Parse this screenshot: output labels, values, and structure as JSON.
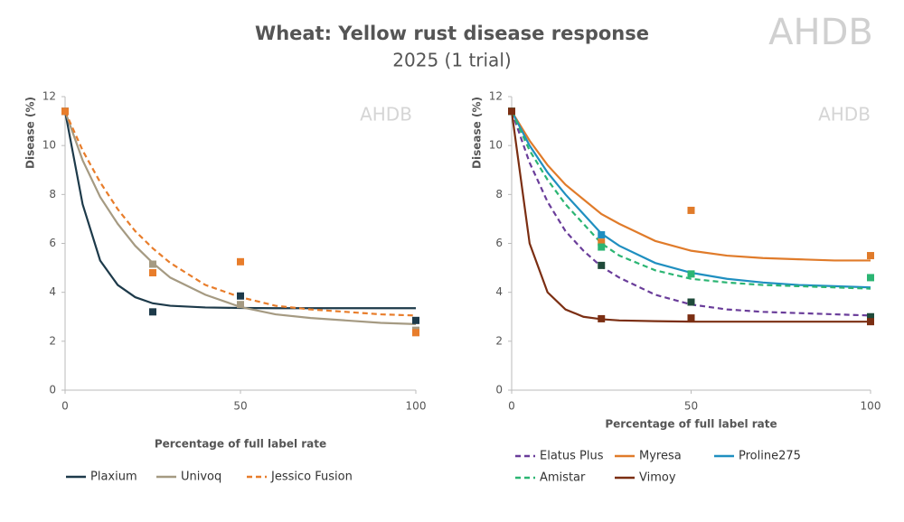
{
  "title": "Wheat: Yellow rust disease response",
  "subtitle": "2025 (1 trial)",
  "logo": "AHDB",
  "chart_data": [
    {
      "type": "line",
      "watermark": "AHDB",
      "xlabel": "Percentage of full label rate",
      "ylabel": "Disease (%)",
      "xlim": [
        0,
        100
      ],
      "ylim": [
        0,
        12
      ],
      "xticks": [
        0,
        50,
        100
      ],
      "yticks": [
        0,
        2,
        4,
        6,
        8,
        10,
        12
      ],
      "x": [
        0,
        5,
        10,
        15,
        20,
        25,
        30,
        40,
        50,
        60,
        70,
        80,
        90,
        100
      ],
      "point_x": [
        0,
        25,
        50,
        100
      ],
      "series": [
        {
          "name": "Plaxium",
          "color": "#1d3a4a",
          "dash": false,
          "point_color": "#1d3a4a",
          "values": [
            11.4,
            7.6,
            5.3,
            4.3,
            3.8,
            3.55,
            3.45,
            3.38,
            3.36,
            3.35,
            3.35,
            3.35,
            3.35,
            3.35
          ],
          "point_values": [
            11.4,
            3.2,
            3.85,
            2.85
          ]
        },
        {
          "name": "Univoq",
          "color": "#a59a82",
          "dash": false,
          "point_color": "#a59a82",
          "values": [
            11.4,
            9.4,
            7.9,
            6.8,
            5.9,
            5.2,
            4.6,
            3.9,
            3.4,
            3.1,
            2.95,
            2.85,
            2.75,
            2.7
          ],
          "point_values": [
            11.4,
            5.15,
            3.5,
            2.45
          ]
        },
        {
          "name": "Jessico Fusion",
          "color": "#e87d2b",
          "dash": true,
          "point_color": "#e87d2b",
          "values": [
            11.4,
            9.8,
            8.5,
            7.4,
            6.5,
            5.8,
            5.2,
            4.3,
            3.8,
            3.45,
            3.3,
            3.2,
            3.1,
            3.05
          ],
          "point_values": [
            11.4,
            4.8,
            5.25,
            2.35
          ]
        }
      ]
    },
    {
      "type": "line",
      "watermark": "AHDB",
      "xlabel": "Percentage of full label rate",
      "ylabel": "Disease (%)",
      "xlim": [
        0,
        100
      ],
      "ylim": [
        0,
        12
      ],
      "xticks": [
        0,
        50,
        100
      ],
      "yticks": [
        0,
        2,
        4,
        6,
        8,
        10,
        12
      ],
      "x": [
        0,
        5,
        10,
        15,
        20,
        25,
        30,
        40,
        50,
        60,
        70,
        80,
        90,
        100
      ],
      "point_x": [
        0,
        25,
        50,
        100
      ],
      "series": [
        {
          "name": "Elatus Plus",
          "color": "#6a3d9a",
          "dash": true,
          "point_color": "#1f4a3a",
          "values": [
            11.4,
            9.3,
            7.7,
            6.5,
            5.7,
            5.05,
            4.6,
            3.9,
            3.5,
            3.3,
            3.2,
            3.15,
            3.1,
            3.05
          ],
          "point_values": [
            11.4,
            5.1,
            3.6,
            3.0
          ]
        },
        {
          "name": "Myresa",
          "color": "#e07b2a",
          "dash": false,
          "point_color": "#e07b2a",
          "values": [
            11.4,
            10.2,
            9.2,
            8.4,
            7.8,
            7.2,
            6.8,
            6.1,
            5.7,
            5.5,
            5.4,
            5.35,
            5.3,
            5.3
          ],
          "point_values": [
            11.4,
            6.05,
            7.35,
            5.5
          ]
        },
        {
          "name": "Proline275",
          "color": "#1f8fc0",
          "dash": false,
          "point_color": "#1f8fc0",
          "values": [
            11.4,
            10.0,
            8.9,
            8.0,
            7.2,
            6.4,
            5.9,
            5.2,
            4.8,
            4.55,
            4.4,
            4.3,
            4.25,
            4.2
          ],
          "point_values": [
            11.4,
            6.35,
            null,
            null
          ]
        },
        {
          "name": "Amistar",
          "color": "#2bb573",
          "dash": true,
          "point_color": "#2bb573",
          "values": [
            11.4,
            9.8,
            8.6,
            7.6,
            6.8,
            6.0,
            5.5,
            4.9,
            4.55,
            4.4,
            4.3,
            4.25,
            4.2,
            4.15
          ],
          "point_values": [
            11.4,
            5.85,
            4.75,
            4.6
          ]
        },
        {
          "name": "Vimoy",
          "color": "#7b2e12",
          "dash": false,
          "point_color": "#7b2e12",
          "values": [
            11.4,
            6.0,
            4.0,
            3.3,
            3.0,
            2.9,
            2.85,
            2.82,
            2.8,
            2.8,
            2.8,
            2.8,
            2.8,
            2.8
          ],
          "point_values": [
            11.4,
            2.92,
            2.95,
            2.8
          ]
        }
      ]
    }
  ]
}
